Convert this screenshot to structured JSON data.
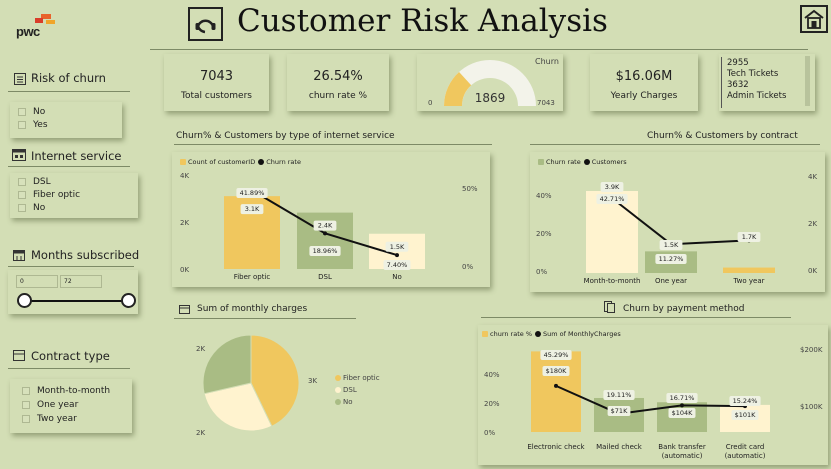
{
  "header": {
    "logo": "pwc",
    "title": "Customer Risk Analysis"
  },
  "slicers": {
    "risk": {
      "title": "Risk of churn",
      "options": [
        "No",
        "Yes"
      ]
    },
    "internet": {
      "title": "Internet service",
      "options": [
        "DSL",
        "Fiber optic",
        "No"
      ]
    },
    "months": {
      "title": "Months subscribed",
      "min": "0",
      "max": "72"
    },
    "contract": {
      "title": "Contract type",
      "options": [
        "Month-to-month",
        "One year",
        "Two year"
      ]
    }
  },
  "kpis": {
    "total_customers": {
      "value": "7043",
      "label": "Total customers"
    },
    "churn_rate": {
      "value": "26.54%",
      "label": "churn rate %"
    },
    "gauge": {
      "title": "Churn",
      "value": "1869",
      "min": "0",
      "max": "7043",
      "fraction": 0.2654
    },
    "yearly_charges": {
      "value": "$16.06M",
      "label": "Yearly Charges"
    },
    "tickets": {
      "tech_value": "2955",
      "tech_label": "Tech Tickets",
      "admin_value": "3632",
      "admin_label": "Admin Tickets"
    }
  },
  "colors": {
    "yellow": "#f0c75e",
    "cream": "#fff3cf",
    "green": "#a9bc84",
    "background": "#d3deb5",
    "line": "#111111"
  },
  "chart_data": [
    {
      "type": "bar",
      "title": "Churn%  & Customers by type of internet service",
      "legend": [
        "Count of customerID",
        "Churn rate"
      ],
      "categories": [
        "Fiber optic",
        "DSL",
        "No"
      ],
      "series": [
        {
          "name": "Count of customerID",
          "values": [
            3100,
            2400,
            1500
          ],
          "labels": [
            "3.1K",
            "2.4K",
            "1.5K"
          ]
        },
        {
          "name": "Churn rate",
          "values": [
            41.89,
            18.96,
            7.4
          ],
          "labels": [
            "41.89%",
            "18.96%",
            "7.40%"
          ]
        }
      ],
      "y_ticks": [
        "4K",
        "2K",
        "0K"
      ],
      "y2_ticks": [
        "50%",
        "0%"
      ]
    },
    {
      "type": "bar",
      "title": "Churn%  & Customers by contract",
      "legend": [
        "Churn rate",
        "Customers"
      ],
      "categories": [
        "Month-to-month",
        "One year",
        "Two year"
      ],
      "series": [
        {
          "name": "Churn rate",
          "values": [
            42.71,
            11.27,
            2.83
          ],
          "labels": [
            "42.71%",
            "11.27%",
            ""
          ]
        },
        {
          "name": "Customers",
          "values": [
            3900,
            1500,
            1700
          ],
          "labels": [
            "3.9K",
            "1.5K",
            "1.7K"
          ]
        }
      ],
      "y_ticks": [
        "40%",
        "20%",
        "0%"
      ],
      "y2_ticks": [
        "4K",
        "2K",
        "0K"
      ]
    },
    {
      "type": "pie",
      "title": "Sum of monthly charges",
      "categories": [
        "Fiber optic",
        "DSL",
        "No"
      ],
      "values": [
        3000,
        2000,
        2000
      ],
      "slice_labels": [
        "3K",
        "2K",
        "2K"
      ],
      "legend": [
        "Fiber optic",
        "DSL",
        "No"
      ]
    },
    {
      "type": "bar",
      "title": "Churn by payment method",
      "legend": [
        "churn rate %",
        "Sum of MonthlyCharges"
      ],
      "categories": [
        "Electronic check",
        "Mailed check",
        "Bank transfer (automatic)",
        "Credit card (automatic)"
      ],
      "series": [
        {
          "name": "churn rate %",
          "values": [
            45.29,
            19.11,
            16.71,
            15.24
          ],
          "labels": [
            "45.29%",
            "19.11%",
            "16.71%",
            "15.24%"
          ]
        },
        {
          "name": "Sum of MonthlyCharges",
          "values": [
            180000,
            71000,
            104000,
            101000
          ],
          "labels": [
            "$180K",
            "$71K",
            "$104K",
            "$101K"
          ]
        }
      ],
      "y_ticks": [
        "40%",
        "20%",
        "0%"
      ],
      "y2_ticks": [
        "$200K",
        "$100K"
      ]
    }
  ]
}
